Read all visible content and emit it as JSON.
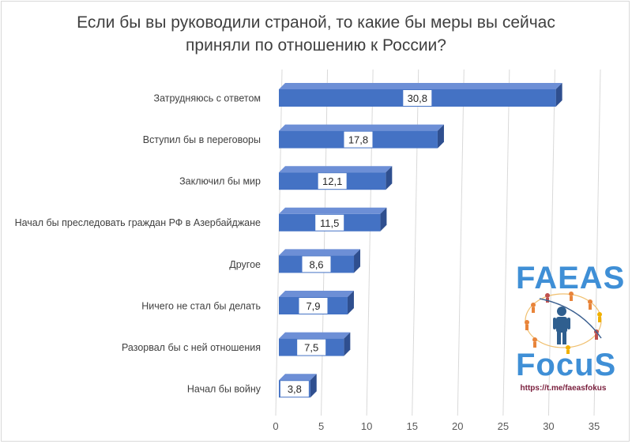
{
  "chart_data": {
    "type": "bar",
    "orientation": "horizontal",
    "title_lines": [
      "Если бы вы руководили страной, то какие бы меры вы сейчас",
      "приняли по отношению  к России?"
    ],
    "categories": [
      "Затрудняюсь с ответом",
      "Вступил бы в переговоры",
      "Заключил бы мир",
      "Начал бы преследовать граждан РФ в Азербайджане",
      "Другое",
      "Ничего не стал бы делать",
      "Разорвал бы с ней отношения",
      "Начал бы войну"
    ],
    "values": [
      30.8,
      17.8,
      12.1,
      11.5,
      8.6,
      7.9,
      7.5,
      3.8
    ],
    "value_labels": [
      "30,8",
      "17,8",
      "12,1",
      "11,5",
      "8,6",
      "7,9",
      "7,5",
      "3,8"
    ],
    "xlim": [
      0,
      35
    ],
    "x_ticks": [
      0,
      5,
      10,
      15,
      20,
      25,
      30,
      35
    ],
    "grid": "vertical",
    "bar_color": "#4472c4",
    "bar_side_color": "#2f4f8f",
    "style": "3d-bar"
  },
  "logo": {
    "top_text": "FAEAS",
    "bottom_text": "FocuS",
    "url": "https://t.me/faeasfokus",
    "colors": {
      "text": "#3f8fd6",
      "url": "#7a1f3d",
      "figure": "#2f5f8f",
      "ring": "#f0a030"
    }
  }
}
